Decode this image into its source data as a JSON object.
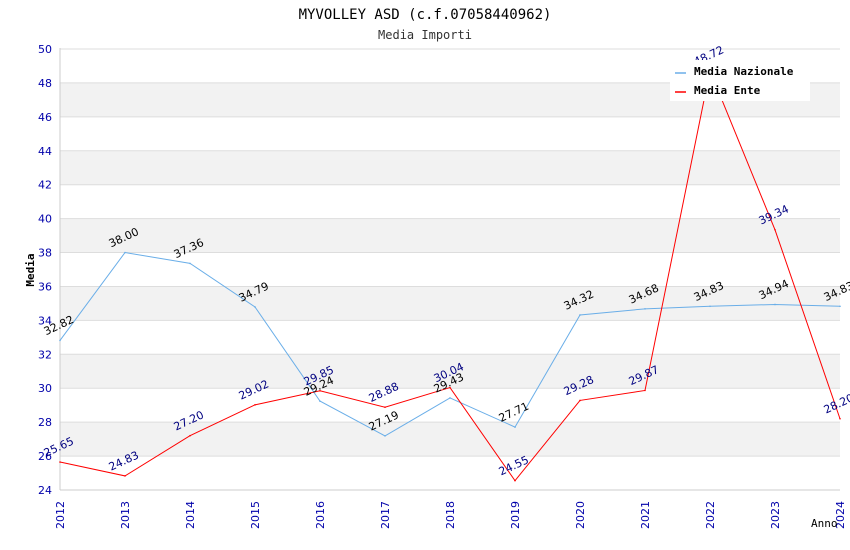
{
  "chart_data": {
    "type": "line",
    "title": "MYVOLLEY ASD (c.f.07058440962)",
    "subtitle": "Media Importi",
    "xlabel": "Anno",
    "ylabel": "Media",
    "ylim": [
      24,
      50
    ],
    "ytick_step": 2,
    "categories": [
      "2012",
      "2013",
      "2014",
      "2015",
      "2016",
      "2017",
      "2018",
      "2019",
      "2020",
      "2021",
      "2022",
      "2023",
      "2024"
    ],
    "series": [
      {
        "name": "Media Nazionale",
        "color": "#6aaee8",
        "label_color": "#000000",
        "values": [
          32.82,
          38.0,
          37.36,
          34.79,
          29.24,
          27.19,
          29.43,
          27.71,
          34.32,
          34.68,
          34.83,
          34.94,
          34.83
        ],
        "labels": [
          "32.82",
          "38.00",
          "37.36",
          "34.79",
          "29.24",
          "27.19",
          "29.43",
          "27.71",
          "34.32",
          "34.68",
          "34.83",
          "34.94",
          "34.83"
        ]
      },
      {
        "name": "Media Ente",
        "color": "#ff0000",
        "label_color": "#000080",
        "values": [
          25.65,
          24.83,
          27.2,
          29.02,
          29.85,
          28.88,
          30.04,
          24.55,
          29.28,
          29.87,
          48.72,
          39.34,
          28.2
        ],
        "labels": [
          "25.65",
          "24.83",
          "27.20",
          "29.02",
          "29.85",
          "28.88",
          "30.04",
          "24.55",
          "29.28",
          "29.87",
          "48.72",
          "39.34",
          "28.20"
        ]
      }
    ],
    "legend_position": "top-right",
    "grid": true
  }
}
